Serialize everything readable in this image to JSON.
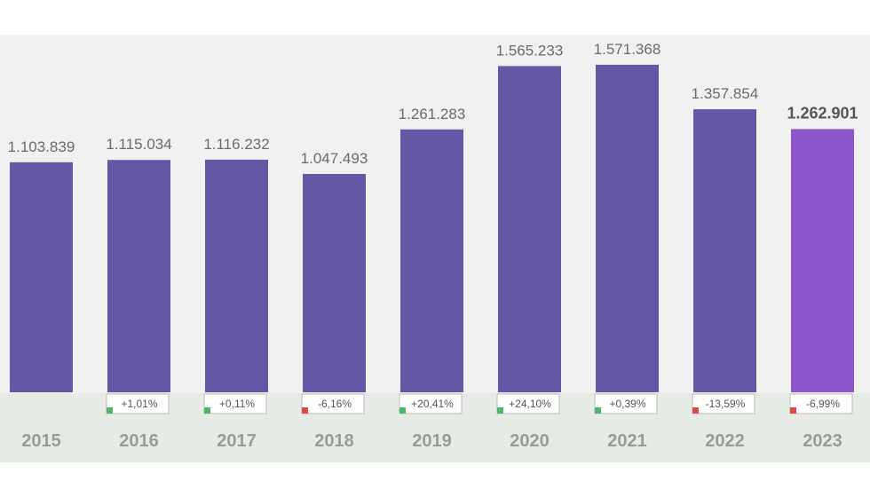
{
  "chart_data": {
    "type": "bar",
    "title": "",
    "xlabel": "",
    "ylabel": "",
    "ylim": [
      0,
      1600000
    ],
    "categories": [
      "2015",
      "2016",
      "2017",
      "2018",
      "2019",
      "2020",
      "2021",
      "2022",
      "2023"
    ],
    "values": [
      1103839,
      1115034,
      1116232,
      1047493,
      1261283,
      1565233,
      1571368,
      1357854,
      1262901
    ],
    "value_labels": [
      "1.103.839",
      "1.115.034",
      "1.116.232",
      "1.047.493",
      "1.261.283",
      "1.565.233",
      "1.571.368",
      "1.357.854",
      "1.262.901"
    ],
    "changes": [
      null,
      "+1,01%",
      "+0,11%",
      "-6,16%",
      "+20,41%",
      "+24,10%",
      "+0,39%",
      "-13,59%",
      "-6,99%"
    ],
    "change_direction": [
      null,
      "up",
      "up",
      "down",
      "up",
      "up",
      "up",
      "down",
      "down"
    ],
    "highlight_index": 8,
    "grid": false
  },
  "colors": {
    "bar": "#6657a6",
    "bar_highlight": "#8d56cd",
    "plot_background": "#f1f1f1",
    "axis_band": "#e6ebe6",
    "up": "#4cb86a",
    "down": "#e04848",
    "change_box_border": "#bdbdbd"
  }
}
